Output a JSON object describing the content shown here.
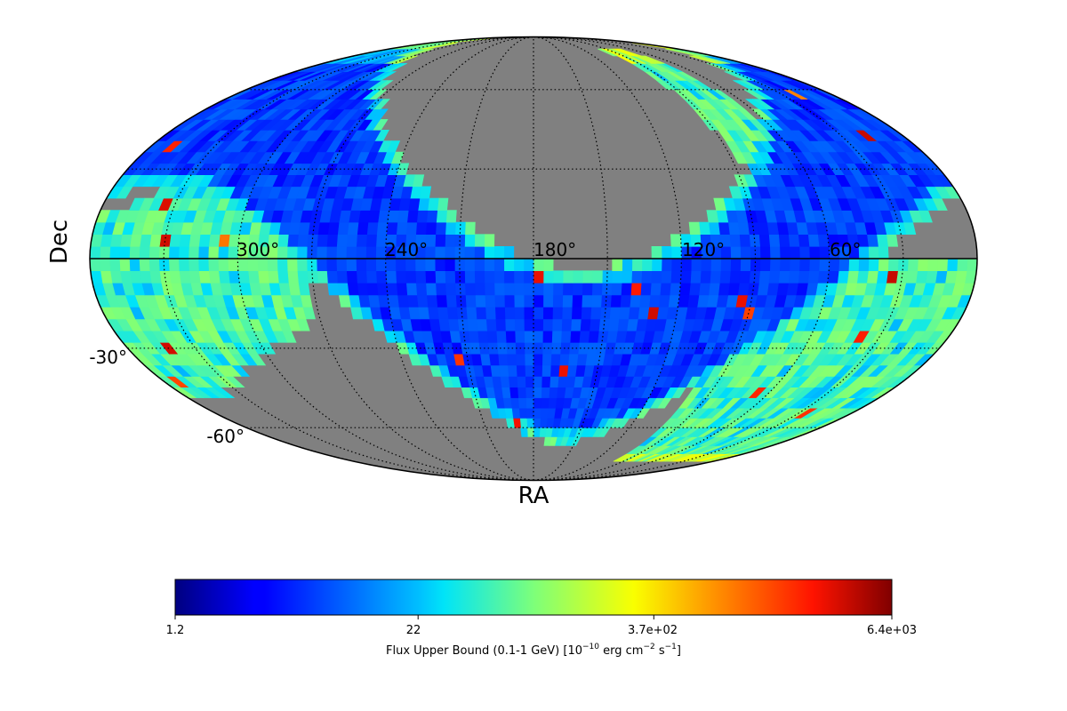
{
  "chart_data": {
    "type": "heatmap",
    "projection": "mollweide",
    "title": "",
    "xlabel": "RA",
    "ylabel": "Dec",
    "ra_ticks": [
      {
        "value": 300,
        "label": "300°"
      },
      {
        "value": 240,
        "label": "240°"
      },
      {
        "value": 180,
        "label": "180°"
      },
      {
        "value": 120,
        "label": "120°"
      },
      {
        "value": 60,
        "label": "60°"
      }
    ],
    "dec_ticks": [
      {
        "value": -30,
        "label": "-30°"
      },
      {
        "value": -60,
        "label": "-60°"
      }
    ],
    "grid": true,
    "ra_range": [
      0,
      360
    ],
    "dec_range": [
      -90,
      90
    ],
    "colormap": "jet",
    "color_scale": "log",
    "no_data_color": "#808080",
    "colorbar": {
      "label_main": "Flux Upper Bound (0.1-1 GeV) [10",
      "label_exp1": "−10",
      "label_mid": " erg cm",
      "label_exp2": "−2",
      "label_mid2": " s",
      "label_exp3": "−1",
      "label_end": "]",
      "min": 1.2,
      "max": 6400,
      "ticks": [
        {
          "value": 1.2,
          "label": "1.2"
        },
        {
          "value": 22,
          "label": "22"
        },
        {
          "value": 370,
          "label": "3.7e+02"
        },
        {
          "value": 6400,
          "label": "6.4e+03"
        }
      ],
      "placement": "bottom"
    }
  }
}
